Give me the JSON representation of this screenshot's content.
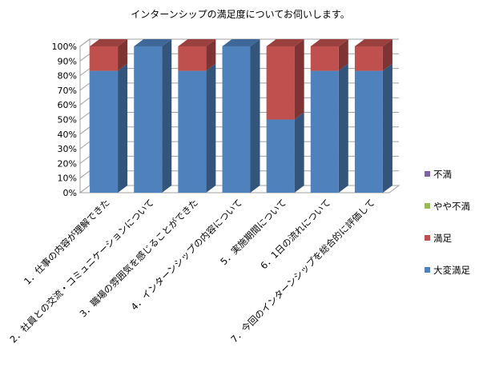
{
  "chart_data": {
    "type": "bar",
    "stacked": true,
    "percent": true,
    "title": "インターンシップの満足度についてお伺いします。",
    "xlabel": "",
    "ylabel": "",
    "ylim": [
      0,
      100
    ],
    "yticks": [
      "0%",
      "10%",
      "20%",
      "30%",
      "40%",
      "50%",
      "60%",
      "70%",
      "80%",
      "90%",
      "100%"
    ],
    "grid": true,
    "legend_position": "right",
    "categories": [
      "1．仕事の内容が理解できた",
      "2．社員との交流・コミュニケーションについて",
      "3．職場の雰囲気を感じることができた",
      "4．インターンシップの内容について",
      "5．実施期間について",
      "6．1日の流れについて",
      "7．今回のインターンシップを総合的に評価して"
    ],
    "series": [
      {
        "name": "大変満足",
        "color": "#4F81BD",
        "values": [
          83.3,
          100,
          83.3,
          100,
          50,
          83.3,
          83.3
        ]
      },
      {
        "name": "満足",
        "color": "#C0504D",
        "values": [
          16.7,
          0,
          16.7,
          0,
          50,
          16.7,
          16.7
        ]
      },
      {
        "name": "やや不満",
        "color": "#9BBB59",
        "values": [
          0,
          0,
          0,
          0,
          0,
          0,
          0
        ]
      },
      {
        "name": "不満",
        "color": "#8064A2",
        "values": [
          0,
          0,
          0,
          0,
          0,
          0,
          0
        ]
      }
    ]
  }
}
